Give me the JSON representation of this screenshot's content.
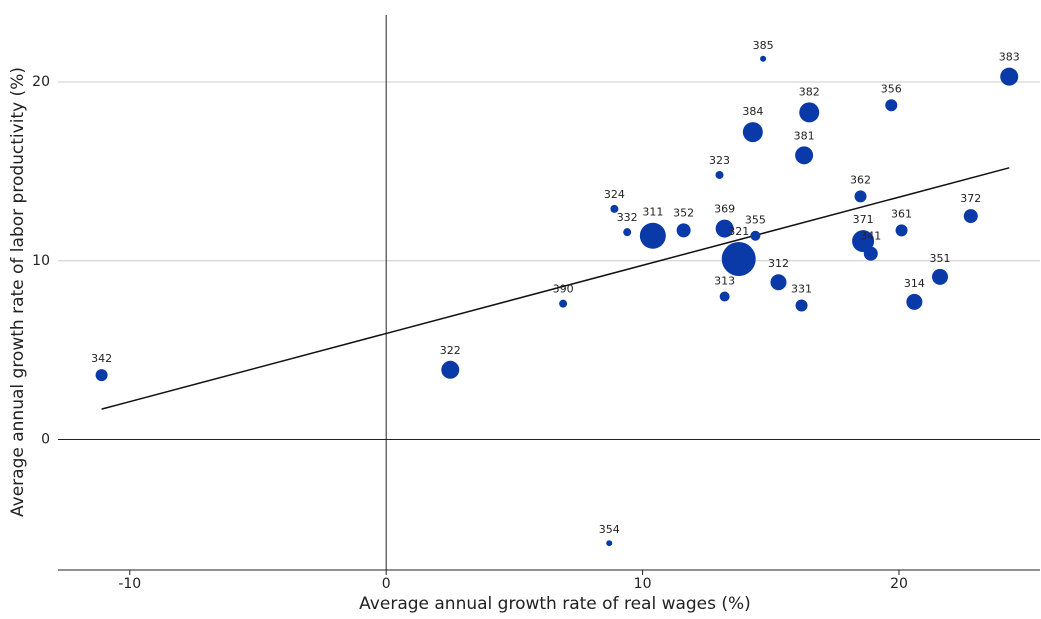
{
  "chart_data": {
    "type": "scatter",
    "x_label": "Average annual growth rate of real wages (%)",
    "y_label": "Average annual growth rate of labor productivity (%)",
    "labels": [
      "342",
      "322",
      "390",
      "354",
      "324",
      "332",
      "311",
      "352",
      "369",
      "323",
      "313",
      "321",
      "355",
      "385",
      "384",
      "312",
      "382",
      "381",
      "331",
      "362",
      "371",
      "341",
      "361",
      "356",
      "314",
      "351",
      "372",
      "383"
    ],
    "x": [
      -11.1,
      2.5,
      6.9,
      8.7,
      8.9,
      9.4,
      10.4,
      11.6,
      13.2,
      13.0,
      13.2,
      13.75,
      14.4,
      14.7,
      14.3,
      15.3,
      16.5,
      16.3,
      16.2,
      18.5,
      18.6,
      18.9,
      20.1,
      19.7,
      20.6,
      21.6,
      22.8,
      24.3
    ],
    "y": [
      3.6,
      3.9,
      7.6,
      -5.8,
      12.9,
      11.6,
      11.4,
      11.7,
      11.8,
      14.8,
      8.0,
      10.1,
      11.4,
      21.3,
      17.2,
      8.8,
      18.3,
      15.9,
      7.5,
      13.6,
      11.1,
      10.4,
      11.7,
      18.7,
      7.7,
      9.1,
      12.5,
      20.3
    ],
    "sizes": [
      36,
      81,
      16,
      9,
      16,
      16,
      169,
      49,
      81,
      16,
      25,
      289,
      25,
      9,
      100,
      64,
      100,
      81,
      36,
      36,
      121,
      49,
      36,
      36,
      64,
      64,
      49,
      81
    ],
    "color": "#0a3aa8",
    "trendline": {
      "x": [
        -11.1,
        24.3
      ],
      "y": [
        1.7,
        15.2
      ]
    },
    "xlim": [
      -12.8,
      25.5
    ],
    "ylim": [
      -7.3,
      23.75
    ],
    "xticks": [
      -10,
      0,
      10,
      20
    ],
    "yticks": [
      0,
      10,
      20
    ],
    "grid": true
  }
}
